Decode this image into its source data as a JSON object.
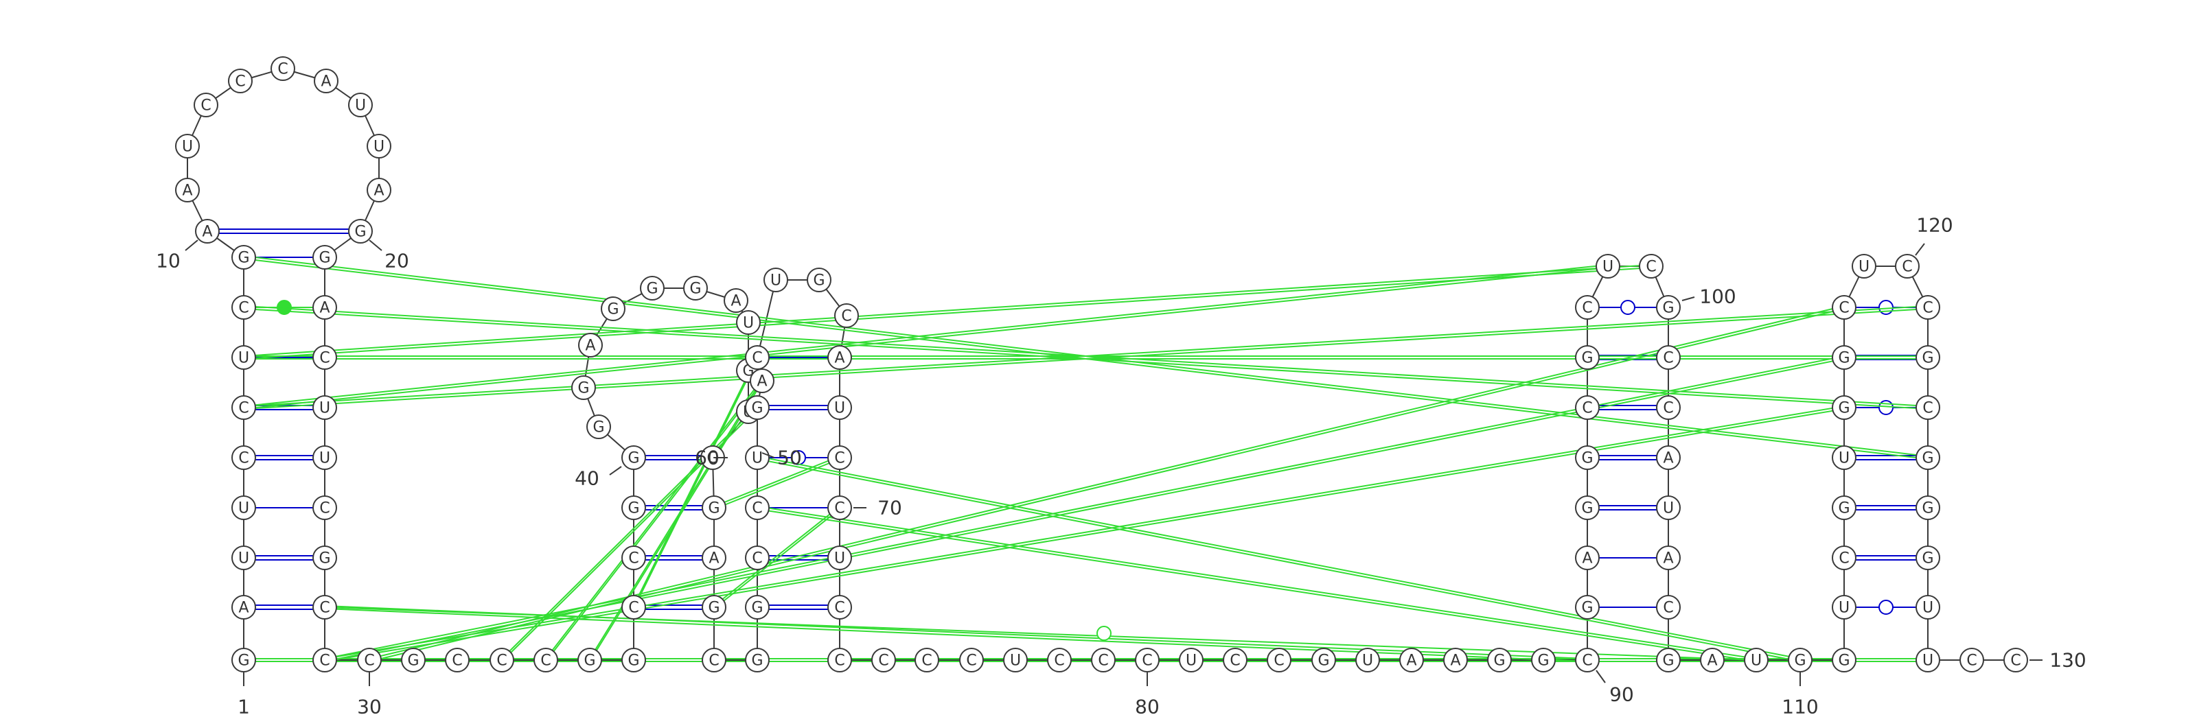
{
  "sequence": "GAUUCCUCGAAUCCCAUUAGGACUUCGCCCGCCCGGCCGGGGAGGGAUGUGGAGCGGCCUGACUGCAUCCUCCCCCUCCCUCCGUAAGGCGAGGCGCUCGCCAUACGAUGGUCGUGGCUCCGCGGGUUCCCCC",
  "numbering": [
    "1",
    "10",
    "20",
    "30",
    "40",
    "50",
    "60",
    "70",
    "80",
    "90",
    "100",
    "110",
    "120",
    "130"
  ],
  "colors": {
    "canonical_pair": "#0000cc",
    "tertiary_interaction": "#33dd33",
    "backbone": "#3a3a3a",
    "nucleotide_fill": "#ffffff"
  },
  "legend_note": "",
  "pair_types": [
    "canonical (double line)",
    "wobble (open circle)",
    "non-canonical (filled circle)"
  ]
}
